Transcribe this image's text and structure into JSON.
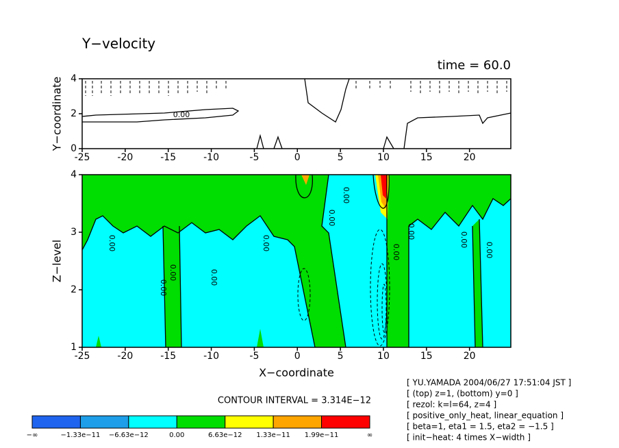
{
  "chart_data": [
    {
      "type": "contour",
      "title": "Y−velocity",
      "subtitle": "time = 60.0",
      "ylabel": "Y−coordinate",
      "xlim": [
        -25,
        24.8
      ],
      "xticks": [
        -25,
        -20,
        -15,
        -10,
        -5,
        0,
        5,
        10,
        15,
        20
      ],
      "ylim": [
        0,
        4
      ],
      "yticks": [
        0,
        2,
        4
      ],
      "contour_label": "0.00"
    },
    {
      "type": "contour",
      "ylabel": "Z−level",
      "xlabel": "X−coordinate",
      "xlim": [
        -25,
        24.8
      ],
      "xticks": [
        -25,
        -20,
        -15,
        -10,
        -5,
        0,
        5,
        10,
        15,
        20
      ],
      "ylim": [
        1,
        4
      ],
      "yticks": [
        1,
        2,
        3,
        4
      ],
      "contour_label": "0.00"
    }
  ],
  "colorbar": {
    "title": "CONTOUR INTERVAL = 3.314E−12",
    "colors": [
      "#1f64ee",
      "#1e9ee8",
      "#00ffff",
      "#00dd00",
      "#ffff00",
      "#ffa500",
      "#ff0000"
    ],
    "labels": [
      "−∞",
      "−1.33e−11",
      "−6.63e−12",
      "0.00",
      "6.63e−12",
      "1.33e−11",
      "1.99e−11",
      "∞"
    ]
  },
  "info": [
    "[ YU.YAMADA 2004/06/27 17:51:04 JST ]",
    "[ (top) z=1, (bottom) y=0 ]",
    "[ rezol: k=l=64, z=4 ]",
    "[ positive_only_heat, linear_equation ]",
    "[ beta=1, eta1 = 1.5, eta2 = −1.5 ]",
    "[ init−heat: 4 times X−width ]"
  ]
}
